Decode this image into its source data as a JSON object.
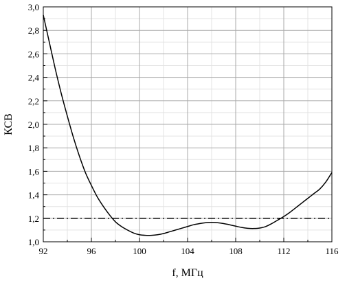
{
  "chart_data": {
    "type": "line",
    "xlabel": "f, МГц",
    "ylabel": "КСВ",
    "xlim": [
      92,
      116
    ],
    "ylim": [
      1.0,
      3.0
    ],
    "x_ticks": [
      92,
      96,
      100,
      104,
      108,
      112,
      116
    ],
    "x_tick_labels": [
      "92",
      "96",
      "100",
      "104",
      "108",
      "112",
      "116"
    ],
    "y_ticks": [
      1.0,
      1.2,
      1.4,
      1.6,
      1.8,
      2.0,
      2.2,
      2.4,
      2.6,
      2.8,
      3.0
    ],
    "y_tick_labels": [
      "1,0",
      "1,2",
      "1,4",
      "1,6",
      "1,8",
      "2,0",
      "2,2",
      "2,4",
      "2,6",
      "2,8",
      "3,0"
    ],
    "grid": true,
    "series": [
      {
        "style": "solid",
        "color": "#000000",
        "x": [
          92.0,
          92.5,
          93.0,
          93.5,
          94.0,
          94.5,
          95.0,
          95.5,
          96.0,
          96.5,
          97.0,
          97.5,
          98.0,
          98.5,
          99.0,
          99.5,
          100.0,
          100.5,
          101.0,
          101.5,
          102.0,
          102.5,
          103.0,
          103.5,
          104.0,
          104.5,
          105.0,
          105.5,
          106.0,
          106.5,
          107.0,
          107.5,
          108.0,
          108.5,
          109.0,
          109.5,
          110.0,
          110.5,
          111.0,
          111.5,
          112.0,
          112.5,
          113.0,
          113.5,
          114.0,
          114.5,
          115.0,
          115.5,
          116.0
        ],
        "y": [
          2.93,
          2.7,
          2.47,
          2.26,
          2.07,
          1.89,
          1.73,
          1.59,
          1.48,
          1.38,
          1.3,
          1.23,
          1.17,
          1.13,
          1.1,
          1.075,
          1.06,
          1.055,
          1.055,
          1.06,
          1.07,
          1.085,
          1.1,
          1.115,
          1.13,
          1.145,
          1.155,
          1.162,
          1.165,
          1.162,
          1.155,
          1.145,
          1.133,
          1.122,
          1.115,
          1.113,
          1.117,
          1.13,
          1.155,
          1.185,
          1.215,
          1.25,
          1.29,
          1.33,
          1.37,
          1.41,
          1.45,
          1.51,
          1.59
        ]
      },
      {
        "style": "dash-dot",
        "color": "#000000",
        "x": [
          92,
          116
        ],
        "y": [
          1.2,
          1.2
        ]
      }
    ]
  }
}
